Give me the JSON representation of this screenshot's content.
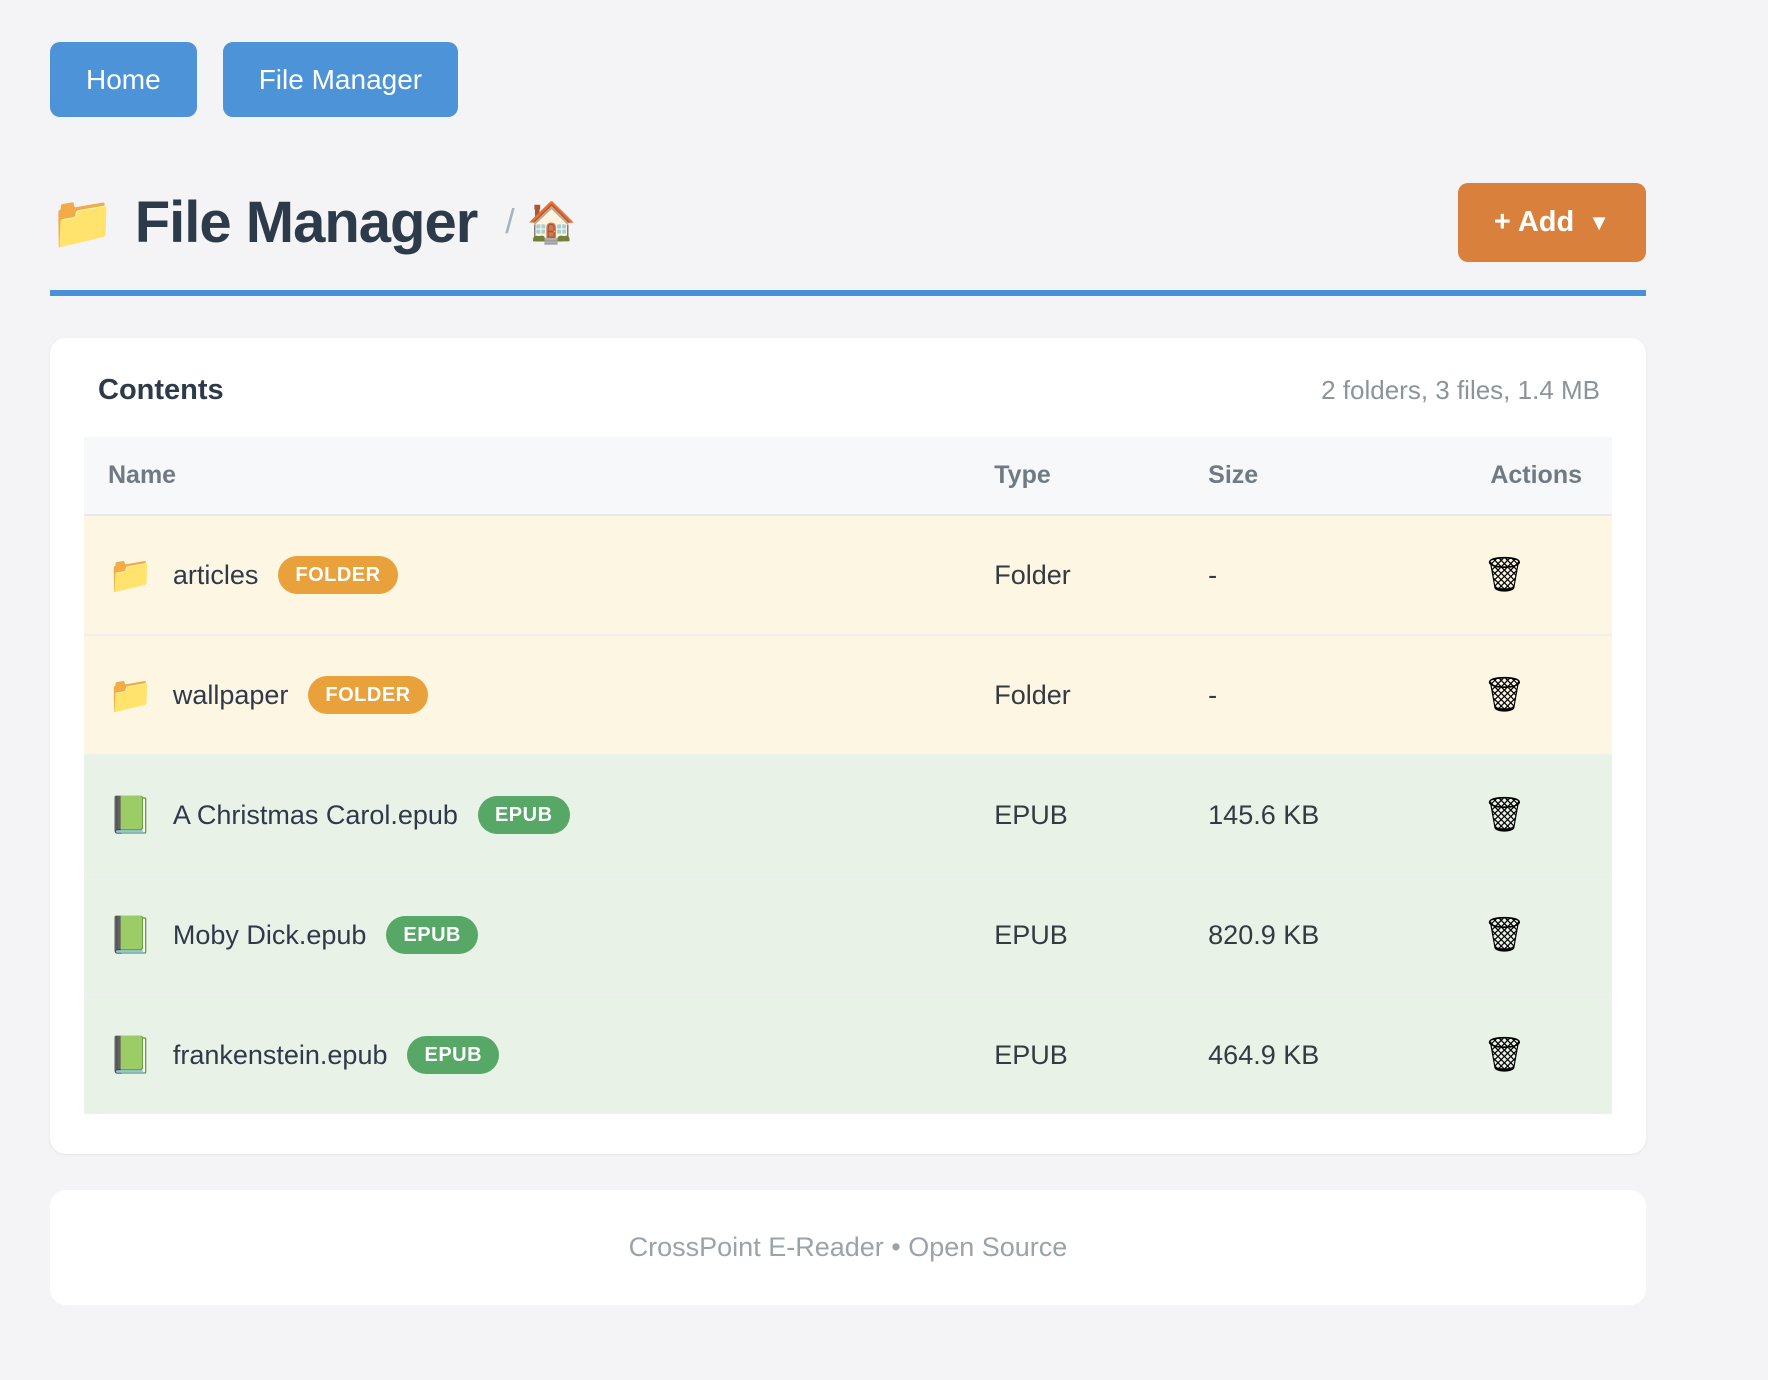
{
  "nav": {
    "home_label": "Home",
    "file_manager_label": "File Manager"
  },
  "header": {
    "title_icon": "📁",
    "title": "File Manager",
    "breadcrumb_separator": "/",
    "breadcrumb_home_icon": "🏠",
    "add_button_label": "+ Add",
    "add_button_caret": "▼"
  },
  "contents": {
    "heading": "Contents",
    "summary": "2 folders, 3 files, 1.4 MB",
    "columns": {
      "name": "Name",
      "type": "Type",
      "size": "Size",
      "actions": "Actions"
    },
    "rows": [
      {
        "icon": "📁",
        "name": "articles",
        "badge": "FOLDER",
        "type": "Folder",
        "size": "-",
        "action_icon": "🗑"
      },
      {
        "icon": "📁",
        "name": "wallpaper",
        "badge": "FOLDER",
        "type": "Folder",
        "size": "-",
        "action_icon": "🗑"
      },
      {
        "icon": "📗",
        "name": "A Christmas Carol.epub",
        "badge": "EPUB",
        "type": "EPUB",
        "size": "145.6 KB",
        "action_icon": "🗑"
      },
      {
        "icon": "📗",
        "name": "Moby Dick.epub",
        "badge": "EPUB",
        "type": "EPUB",
        "size": "820.9 KB",
        "action_icon": "🗑"
      },
      {
        "icon": "📗",
        "name": "frankenstein.epub",
        "badge": "EPUB",
        "type": "EPUB",
        "size": "464.9 KB",
        "action_icon": "🗑"
      }
    ]
  },
  "footer": {
    "text": "CrossPoint E-Reader • Open Source"
  },
  "colors": {
    "nav_button_blue": "#4d93d8",
    "add_button_orange": "#d9813c",
    "divider_blue": "#4a90d9",
    "badge_folder_orange": "#e9a23b",
    "badge_epub_green": "#57a767",
    "row_folder_bg": "#fdf6e3",
    "row_epub_bg": "#e8f2e7"
  }
}
